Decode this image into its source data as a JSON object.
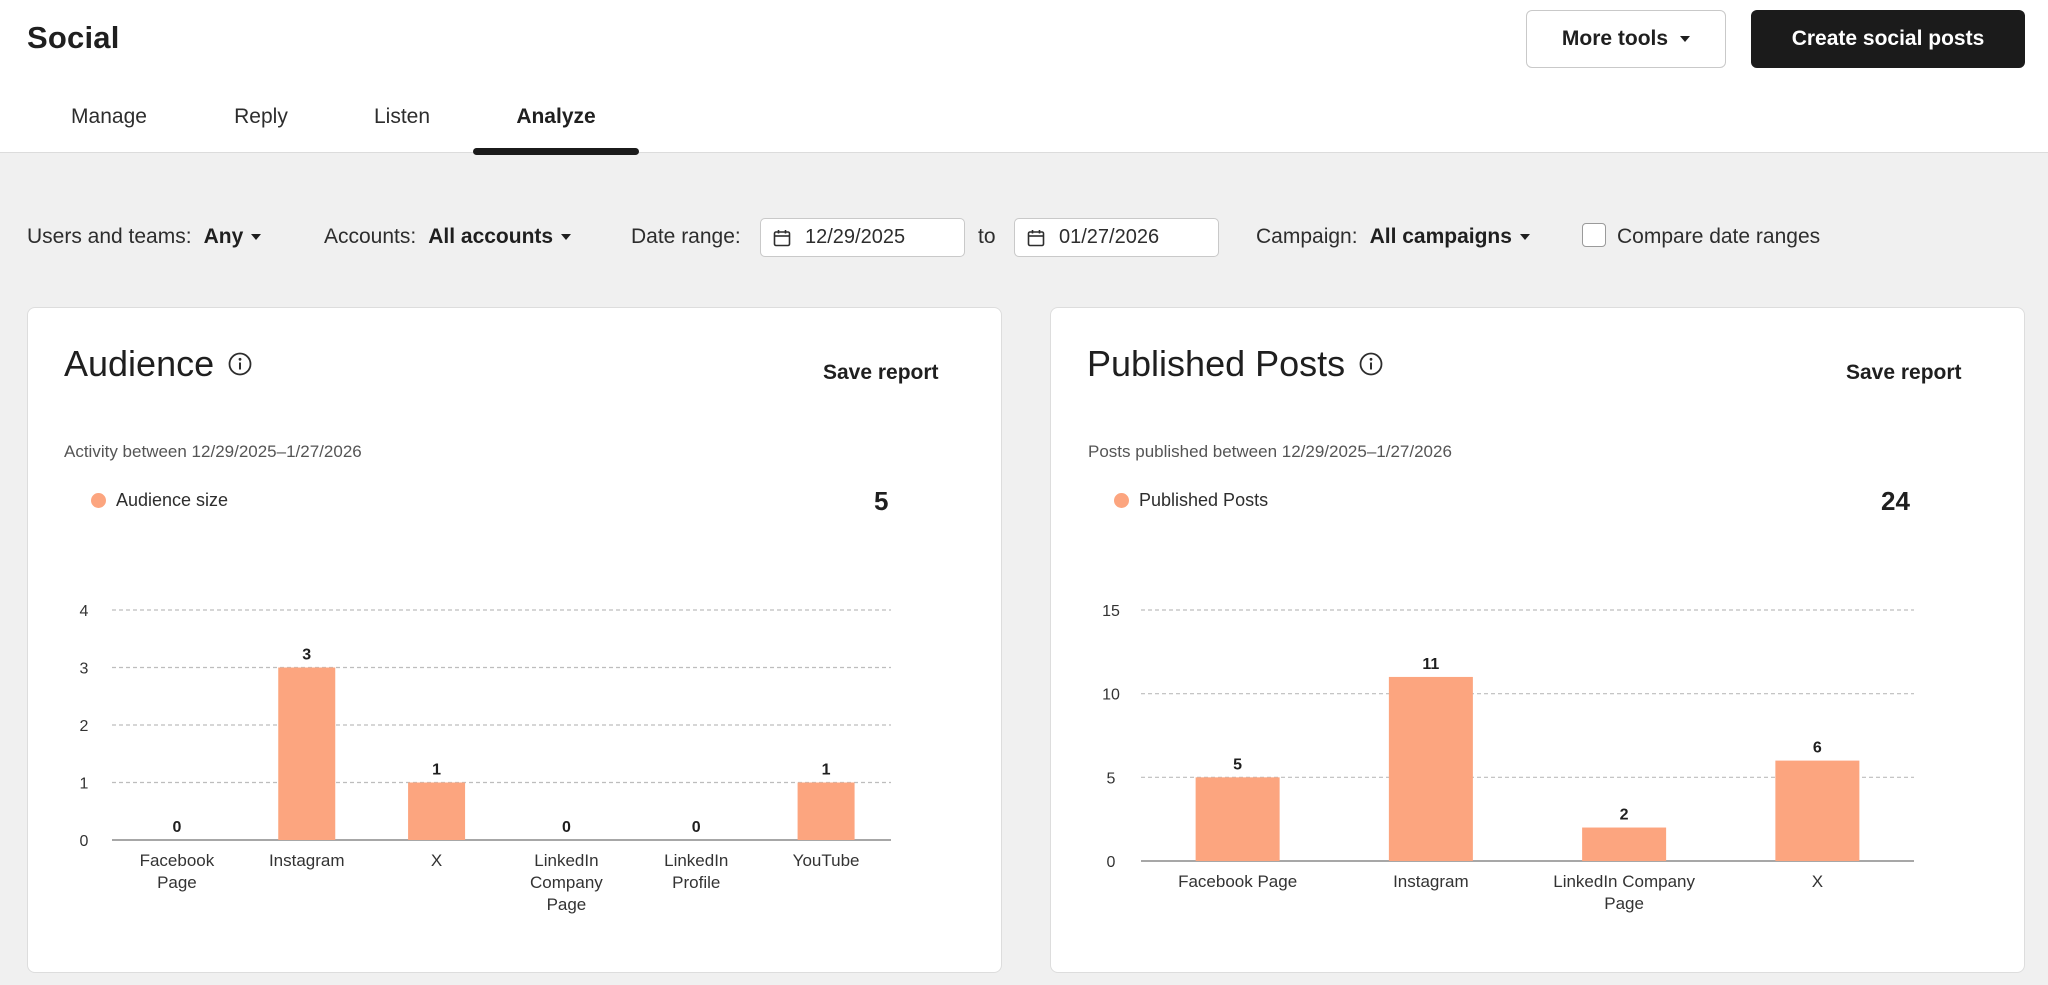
{
  "app": {
    "title": "Social"
  },
  "header": {
    "more_tools": "More tools",
    "create": "Create social posts"
  },
  "tabs": [
    {
      "label": "Manage"
    },
    {
      "label": "Reply"
    },
    {
      "label": "Listen"
    },
    {
      "label": "Analyze",
      "active": true
    }
  ],
  "filters": {
    "users_label": "Users and teams:",
    "users_value": "Any",
    "accounts_label": "Accounts:",
    "accounts_value": "All accounts",
    "date_label": "Date range:",
    "date_from": "12/29/2025",
    "date_to_word": "to",
    "date_to": "01/27/2026",
    "campaign_label": "Campaign:",
    "campaign_value": "All campaigns",
    "compare_label": "Compare date ranges",
    "compare_checked": false
  },
  "colors": {
    "bar": "#fca57f",
    "accent_dark": "#1b1b1b"
  },
  "icons": {
    "calendar": "calendar-icon",
    "info": "info-icon"
  },
  "cards": {
    "audience": {
      "title": "Audience",
      "save": "Save report",
      "subtitle": "Activity between 12/29/2025–1/27/2026",
      "legend": "Audience size",
      "total": "5"
    },
    "posts": {
      "title": "Published Posts",
      "save": "Save report",
      "subtitle": "Posts published between 12/29/2025–1/27/2026",
      "legend": "Published Posts",
      "total": "24"
    }
  },
  "chart_data": [
    {
      "type": "bar",
      "categories": [
        [
          "Facebook",
          "Page"
        ],
        [
          "Instagram"
        ],
        [
          "X"
        ],
        [
          "LinkedIn",
          "Company",
          "Page"
        ],
        [
          "LinkedIn",
          "Profile"
        ],
        [
          "YouTube"
        ]
      ],
      "series": [
        {
          "name": "Audience size",
          "values": [
            0,
            3,
            1,
            0,
            0,
            1
          ]
        }
      ],
      "ylim": [
        0,
        4
      ],
      "yticks": [
        0,
        1,
        2,
        3,
        4
      ],
      "grid": true,
      "data_labels": true
    },
    {
      "type": "bar",
      "categories": [
        [
          "Facebook Page"
        ],
        [
          "Instagram"
        ],
        [
          "LinkedIn Company",
          "Page"
        ],
        [
          "X"
        ]
      ],
      "series": [
        {
          "name": "Published Posts",
          "values": [
            5,
            11,
            2,
            6
          ]
        }
      ],
      "ylim": [
        0,
        15
      ],
      "yticks": [
        0,
        5,
        10,
        15
      ],
      "grid": true,
      "data_labels": true
    }
  ]
}
